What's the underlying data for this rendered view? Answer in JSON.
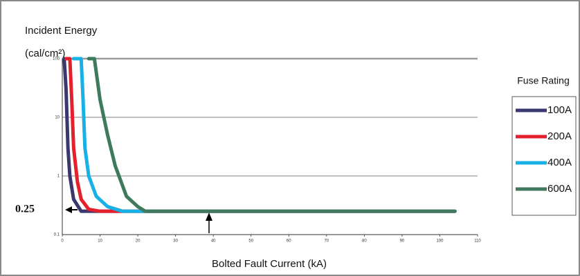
{
  "chart_data": {
    "type": "line",
    "y_label": "Incident Energy",
    "y_unit": "(cal/cm²)",
    "x_label": "Bolted Fault Current (kA)",
    "annotation": "0.25",
    "legend_title": "Fuse Rating",
    "legend": "right",
    "log_y": true,
    "grid": true,
    "xlim": [
      0,
      110
    ],
    "xticks": [
      0,
      10,
      20,
      30,
      40,
      50,
      60,
      70,
      80,
      90,
      100,
      110
    ],
    "ylim": [
      0.1,
      100
    ],
    "yticks": [
      0.1,
      1,
      10,
      100
    ],
    "series": [
      {
        "name": "100A",
        "color": "#3b3870",
        "x": [
          0.5,
          1,
          1.5,
          2,
          3,
          5,
          104
        ],
        "values": [
          100,
          30,
          3,
          1,
          0.4,
          0.25,
          0.25
        ]
      },
      {
        "name": "200A",
        "color": "#e3202b",
        "x": [
          1,
          2,
          2.5,
          3,
          4,
          5,
          7,
          10,
          104
        ],
        "values": [
          100,
          100,
          20,
          3,
          0.8,
          0.4,
          0.27,
          0.25,
          0.25
        ]
      },
      {
        "name": "400A",
        "color": "#17b1e6",
        "x": [
          3,
          5,
          5.5,
          6,
          7,
          9,
          12,
          16,
          104
        ],
        "values": [
          100,
          100,
          20,
          3,
          1,
          0.45,
          0.3,
          0.25,
          0.25
        ]
      },
      {
        "name": "600A",
        "color": "#3e7a5b",
        "x": [
          7,
          8.5,
          10,
          12,
          14,
          17,
          20,
          22,
          104
        ],
        "values": [
          100,
          100,
          20,
          5,
          1.5,
          0.45,
          0.3,
          0.25,
          0.25
        ]
      }
    ]
  }
}
